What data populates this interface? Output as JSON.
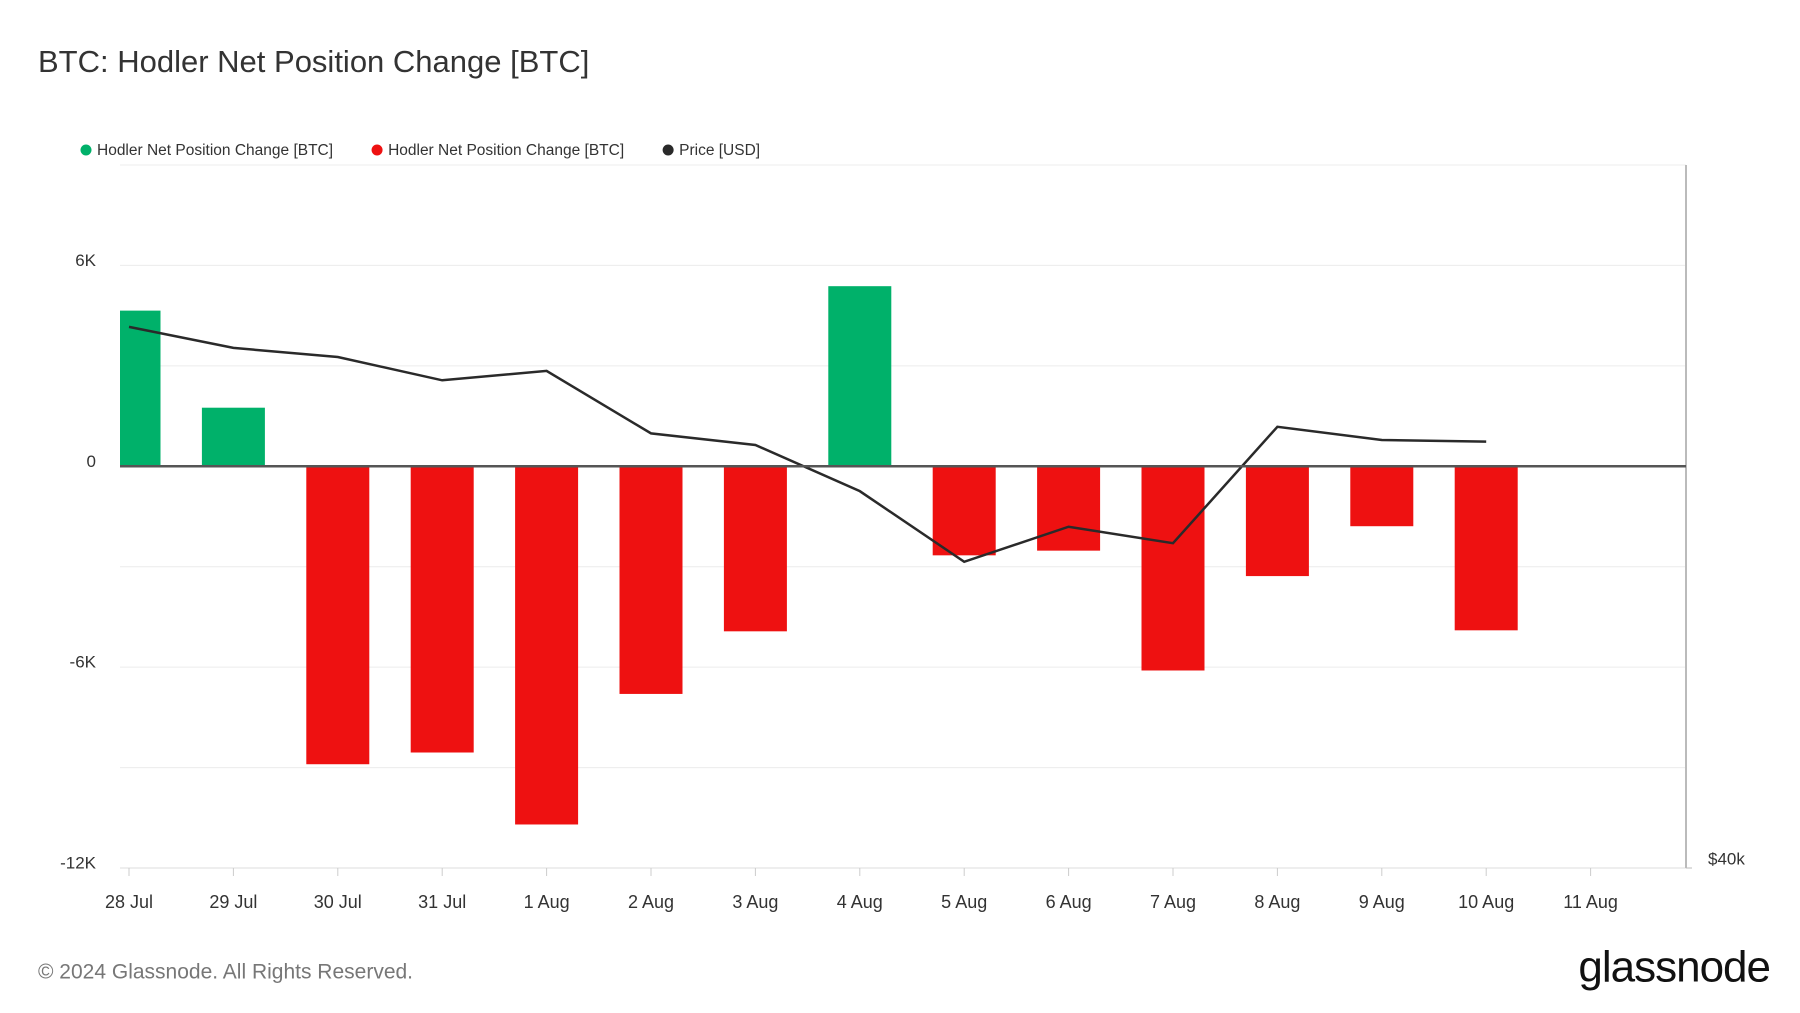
{
  "chart_data": {
    "type": "bar",
    "title": "BTC: Hodler Net Position Change [BTC]",
    "categories": [
      "28 Jul",
      "29 Jul",
      "30 Jul",
      "31 Jul",
      "1 Aug",
      "2 Aug",
      "3 Aug",
      "4 Aug",
      "5 Aug",
      "6 Aug",
      "7 Aug",
      "8 Aug",
      "9 Aug",
      "10 Aug",
      "11 Aug"
    ],
    "series": [
      {
        "name": "Hodler Net Position Change [BTC]",
        "color": "#00b16a",
        "values": [
          4650,
          1750,
          null,
          null,
          null,
          null,
          null,
          5380,
          null,
          null,
          null,
          null,
          null,
          null,
          null
        ]
      },
      {
        "name": "Hodler Net Position Change [BTC]",
        "color": "#ee1111",
        "values": [
          null,
          null,
          -8900,
          -8550,
          -10700,
          -6800,
          -4930,
          null,
          -2660,
          -2520,
          -6100,
          -3280,
          -1790,
          -4900,
          null
        ]
      },
      {
        "name": "Price [USD]",
        "color": "#2a2a2a",
        "type": "line",
        "axis": "y2",
        "values": [
          68200,
          66800,
          66200,
          64700,
          65300,
          61400,
          60700,
          58000,
          54100,
          56000,
          55100,
          61800,
          61000,
          60900,
          null
        ]
      }
    ],
    "ylim": [
      -12000,
      9000
    ],
    "yticks": [
      {
        "value": 6000,
        "label": "6K"
      },
      {
        "value": 0,
        "label": "0"
      },
      {
        "value": -6000,
        "label": "-6K"
      },
      {
        "value": -12000,
        "label": "-12K"
      }
    ],
    "minor_yticks": [
      9000,
      3000,
      -3000,
      -9000
    ],
    "y2lim": [
      40000,
      80000
    ],
    "y2ticks": [
      {
        "value": 40000,
        "label": "$40k"
      }
    ],
    "y2log": true,
    "grid": true,
    "legend": "top-left",
    "footer": "© 2024 Glassnode. All Rights Reserved.",
    "brand": "glassnode"
  }
}
